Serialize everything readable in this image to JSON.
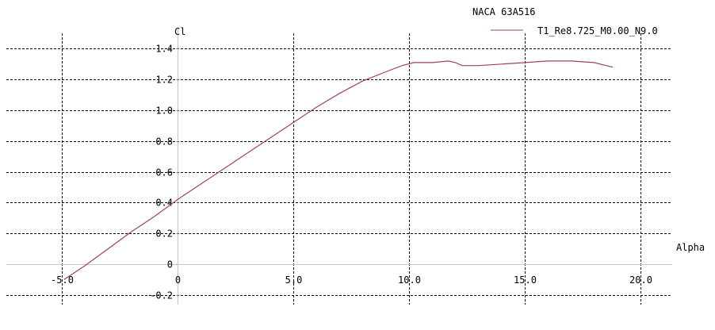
{
  "chart_data": {
    "type": "line",
    "title": "NACA 63A516",
    "xlabel": "Alpha",
    "ylabel": "Cl",
    "xlim": [
      -8,
      21
    ],
    "ylim": [
      -0.25,
      1.47
    ],
    "grid": true,
    "legend_position": "top-right",
    "x_ticks": [
      -5,
      0,
      5,
      10,
      15,
      20
    ],
    "x_tick_labels": [
      "-5.0",
      "0",
      "5.0",
      "10.0",
      "15.0",
      "20.0"
    ],
    "y_ticks": [
      -0.2,
      0,
      0.2,
      0.4,
      0.6,
      0.8,
      1.0,
      1.2,
      1.4
    ],
    "y_tick_labels": [
      "-0.2",
      "0",
      "0.2",
      "0.4",
      "0.6",
      "0.8",
      "1.0",
      "1.2",
      "1.4"
    ],
    "series": [
      {
        "name": "T1_Re8.725_M0.00_N9.0",
        "color": "#a0406a",
        "x": [
          -4.9,
          -4,
          -3,
          -2,
          -1,
          0,
          1,
          2,
          3,
          4,
          5,
          6,
          7,
          8,
          9,
          9.7,
          10.2,
          11,
          11.7,
          12,
          12.3,
          13,
          14,
          15,
          16,
          17,
          18,
          18.8
        ],
        "y": [
          -0.1,
          -0.01,
          0.1,
          0.21,
          0.31,
          0.42,
          0.52,
          0.62,
          0.72,
          0.82,
          0.92,
          1.02,
          1.11,
          1.19,
          1.25,
          1.29,
          1.31,
          1.31,
          1.32,
          1.31,
          1.29,
          1.29,
          1.3,
          1.31,
          1.32,
          1.32,
          1.31,
          1.28
        ]
      }
    ]
  }
}
